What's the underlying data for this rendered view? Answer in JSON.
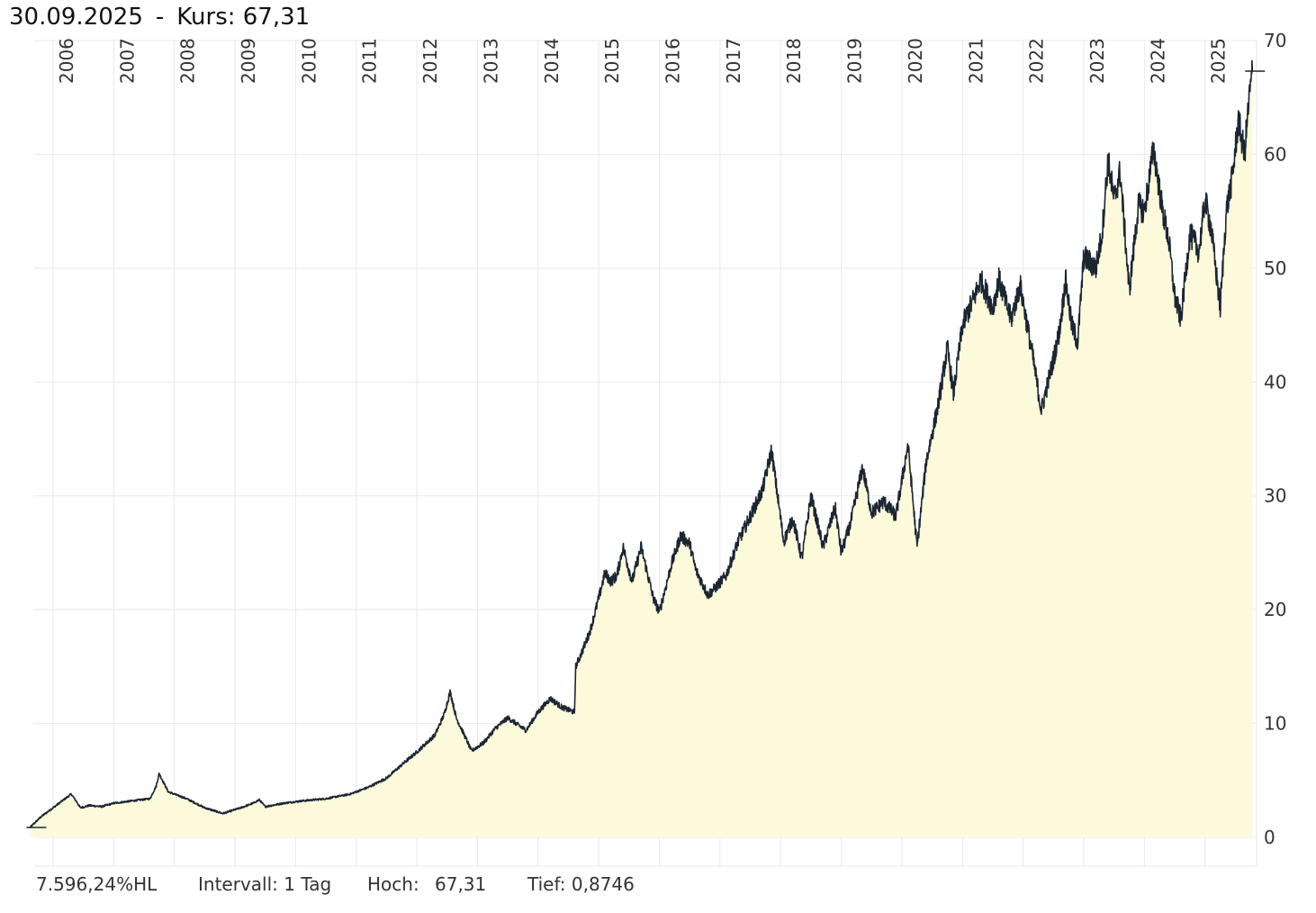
{
  "header": {
    "date": "30.09.2025",
    "separator": "-",
    "price_label": "Kurs:",
    "price_value": "67,31"
  },
  "footer": {
    "performance": "7.596,24%HL",
    "interval": "Intervall: 1 Tag",
    "high_label": "Hoch:",
    "high_value": "67,31",
    "low": "Tief: 0,8746"
  },
  "colors": {
    "line": "#1b2633",
    "fill": "#fdf9db",
    "grid": "#e9e9e9",
    "axis_text": "#333333"
  },
  "chart_data": {
    "type": "area",
    "title": "30.09.2025 - Kurs: 67,31",
    "xlabel": "",
    "ylabel": "",
    "xlim": [
      2005.6,
      2025.85
    ],
    "ylim": [
      0,
      70
    ],
    "y_ticks": [
      0,
      10,
      20,
      30,
      40,
      50,
      60,
      70
    ],
    "y_tick_labels": [
      "0",
      "10",
      "20",
      "30",
      "40",
      "50",
      "60",
      "70"
    ],
    "x_ticks": [
      2006,
      2007,
      2008,
      2009,
      2010,
      2011,
      2012,
      2013,
      2014,
      2015,
      2016,
      2017,
      2018,
      2019,
      2020,
      2021,
      2022,
      2023,
      2024,
      2025
    ],
    "x_tick_labels": [
      "2006",
      "2007",
      "2008",
      "2009",
      "2010",
      "2011",
      "2012",
      "2013",
      "2014",
      "2015",
      "2016",
      "2017",
      "2018",
      "2019",
      "2020",
      "2021",
      "2022",
      "2023",
      "2024",
      "2025"
    ],
    "grid": true,
    "series": [
      {
        "name": "Kurs",
        "x": [
          2005.62,
          2005.8,
          2005.95,
          2006.1,
          2006.3,
          2006.38,
          2006.45,
          2006.6,
          2006.8,
          2007.0,
          2007.3,
          2007.6,
          2007.7,
          2007.75,
          2007.9,
          2008.2,
          2008.5,
          2008.8,
          2009.1,
          2009.3,
          2009.4,
          2009.5,
          2009.8,
          2010.1,
          2010.5,
          2010.9,
          2011.2,
          2011.5,
          2011.8,
          2012.0,
          2012.3,
          2012.45,
          2012.55,
          2012.65,
          2012.8,
          2012.9,
          2013.1,
          2013.3,
          2013.5,
          2013.8,
          2014.0,
          2014.2,
          2014.4,
          2014.6,
          2014.62,
          2014.7,
          2014.85,
          2015.0,
          2015.1,
          2015.2,
          2015.3,
          2015.4,
          2015.55,
          2015.7,
          2015.9,
          2016.0,
          2016.2,
          2016.35,
          2016.5,
          2016.6,
          2016.8,
          2016.9,
          2017.1,
          2017.3,
          2017.5,
          2017.7,
          2017.85,
          2017.95,
          2018.05,
          2018.2,
          2018.35,
          2018.5,
          2018.7,
          2018.9,
          2019.0,
          2019.15,
          2019.35,
          2019.5,
          2019.7,
          2019.9,
          2020.1,
          2020.15,
          2020.25,
          2020.4,
          2020.6,
          2020.75,
          2020.85,
          2021.0,
          2021.2,
          2021.3,
          2021.5,
          2021.6,
          2021.8,
          2021.95,
          2022.1,
          2022.15,
          2022.3,
          2022.5,
          2022.6,
          2022.7,
          2022.8,
          2022.9,
          2023.0,
          2023.2,
          2023.3,
          2023.4,
          2023.5,
          2023.6,
          2023.75,
          2023.9,
          2024.0,
          2024.15,
          2024.3,
          2024.4,
          2024.5,
          2024.6,
          2024.75,
          2024.9,
          2025.0,
          2025.1,
          2025.25,
          2025.35,
          2025.45,
          2025.55,
          2025.65,
          2025.72,
          2025.78
        ],
        "y": [
          0.87,
          1.8,
          2.4,
          3.0,
          3.8,
          3.2,
          2.6,
          2.8,
          2.7,
          3.0,
          3.2,
          3.4,
          4.5,
          5.6,
          4.0,
          3.4,
          2.6,
          2.1,
          2.6,
          3.0,
          3.3,
          2.7,
          3.0,
          3.2,
          3.4,
          3.8,
          4.4,
          5.2,
          6.6,
          7.5,
          9.0,
          10.8,
          12.8,
          10.5,
          8.8,
          7.6,
          8.3,
          9.6,
          10.5,
          9.4,
          11.0,
          12.2,
          11.4,
          11.0,
          15.0,
          16.0,
          18.0,
          21.0,
          23.2,
          22.5,
          23.0,
          25.5,
          22.5,
          25.5,
          21.0,
          19.8,
          24.0,
          26.5,
          25.8,
          23.5,
          21.3,
          21.8,
          23.0,
          26.0,
          28.2,
          30.5,
          34.0,
          30.0,
          26.0,
          28.0,
          24.5,
          30.0,
          25.5,
          29.0,
          25.0,
          27.5,
          32.5,
          28.5,
          29.5,
          28.2,
          34.5,
          31.5,
          25.5,
          33.0,
          38.0,
          43.0,
          39.0,
          45.0,
          47.5,
          49.0,
          46.5,
          49.0,
          45.5,
          48.5,
          44.0,
          42.5,
          37.5,
          42.0,
          44.5,
          49.0,
          45.0,
          43.5,
          51.0,
          50.0,
          53.0,
          59.5,
          56.0,
          58.5,
          48.0,
          55.5,
          55.0,
          60.5,
          55.0,
          52.5,
          47.5,
          45.5,
          53.0,
          51.5,
          56.0,
          53.5,
          46.5,
          55.0,
          58.0,
          63.0,
          60.0,
          64.5,
          67.31
        ]
      }
    ],
    "high": 67.31,
    "low": 0.8746
  }
}
